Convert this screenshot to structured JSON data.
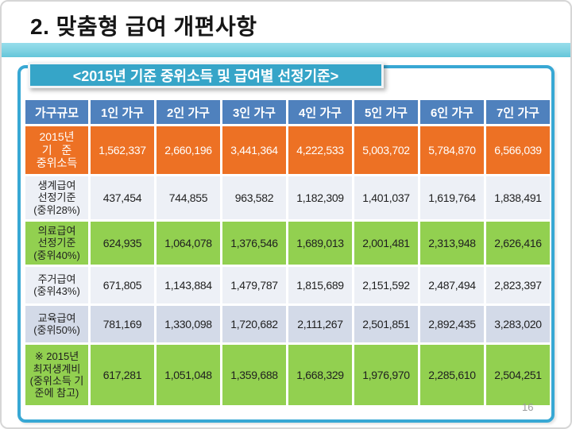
{
  "slide": {
    "title": "2. 맞춤형 급여 개편사항",
    "banner": "<2015년 기준 중위소득 및 급여별 선정기준>",
    "page_number": "16"
  },
  "colors": {
    "header-blue": "#4F81BD",
    "row-orange": "#ED7124",
    "row-green": "#92D050",
    "row-light": "#EDF0F6",
    "row-alt": "#D3DAE8",
    "banner-teal": "#36A5C8",
    "frame-border": "#38A8D4",
    "band-teal": "#7FD2E2",
    "page-num-gray": "#9B9B9B"
  },
  "table": {
    "columns": [
      "가구규모",
      "1인 가구",
      "2인 가구",
      "3인 가구",
      "4인 가구",
      "5인 가구",
      "6인 가구",
      "7인 가구"
    ],
    "rows": [
      {
        "label": "2015년\n기   준\n중위소득",
        "values": [
          "1,562,337",
          "2,660,196",
          "3,441,364",
          "4,222,533",
          "5,003,702",
          "5,784,870",
          "6,566,039"
        ]
      },
      {
        "label": "생계급여\n선정기준\n(중위28%)",
        "values": [
          "437,454",
          "744,855",
          "963,582",
          "1,182,309",
          "1,401,037",
          "1,619,764",
          "1,838,491"
        ]
      },
      {
        "label": "의료급여\n선정기준\n(중위40%)",
        "values": [
          "624,935",
          "1,064,078",
          "1,376,546",
          "1,689,013",
          "2,001,481",
          "2,313,948",
          "2,626,416"
        ]
      },
      {
        "label": "주거급여\n(중위43%)",
        "values": [
          "671,805",
          "1,143,884",
          "1,479,787",
          "1,815,689",
          "2,151,592",
          "2,487,494",
          "2,823,397"
        ]
      },
      {
        "label": "교육급여\n(중위50%)",
        "values": [
          "781,169",
          "1,330,098",
          "1,720,682",
          "2,111,267",
          "2,501,851",
          "2,892,435",
          "3,283,020"
        ]
      },
      {
        "label": "※ 2015년\n최저생계비\n(중위소득 기\n준에 참고)",
        "values": [
          "617,281",
          "1,051,048",
          "1,359,688",
          "1,668,329",
          "1,976,970",
          "2,285,610",
          "2,504,251"
        ]
      }
    ]
  }
}
